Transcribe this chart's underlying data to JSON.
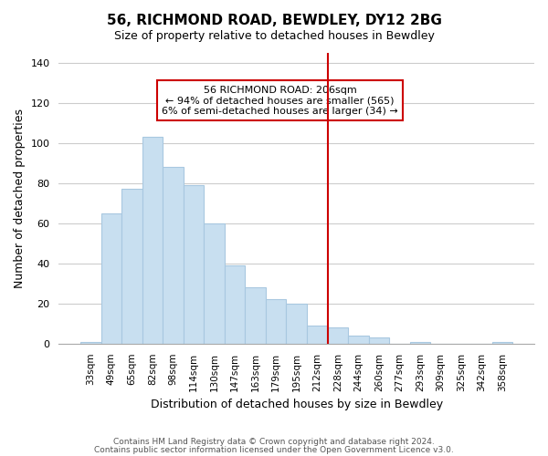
{
  "title1": "56, RICHMOND ROAD, BEWDLEY, DY12 2BG",
  "title2": "Size of property relative to detached houses in Bewdley",
  "xlabel": "Distribution of detached houses by size in Bewdley",
  "ylabel": "Number of detached properties",
  "footer1": "Contains HM Land Registry data © Crown copyright and database right 2024.",
  "footer2": "Contains public sector information licensed under the Open Government Licence v3.0.",
  "bar_labels": [
    "33sqm",
    "49sqm",
    "65sqm",
    "82sqm",
    "98sqm",
    "114sqm",
    "130sqm",
    "147sqm",
    "163sqm",
    "179sqm",
    "195sqm",
    "212sqm",
    "228sqm",
    "244sqm",
    "260sqm",
    "277sqm",
    "293sqm",
    "309sqm",
    "325sqm",
    "342sqm",
    "358sqm"
  ],
  "bar_values": [
    1,
    65,
    77,
    103,
    88,
    79,
    60,
    39,
    28,
    22,
    20,
    9,
    8,
    4,
    3,
    0,
    1,
    0,
    0,
    0,
    1
  ],
  "bar_color": "#c8dff0",
  "bar_edge_color": "#a8c8e0",
  "reference_line_x": 11.5,
  "reference_line_color": "#cc0000",
  "ylim": [
    0,
    145
  ],
  "yticks": [
    0,
    20,
    40,
    60,
    80,
    100,
    120,
    140
  ],
  "annotation_text_line1": "56 RICHMOND ROAD: 206sqm",
  "annotation_text_line2": "← 94% of detached houses are smaller (565)",
  "annotation_text_line3": "6% of semi-detached houses are larger (34) →",
  "grid_color": "#cccccc",
  "background_color": "#ffffff"
}
